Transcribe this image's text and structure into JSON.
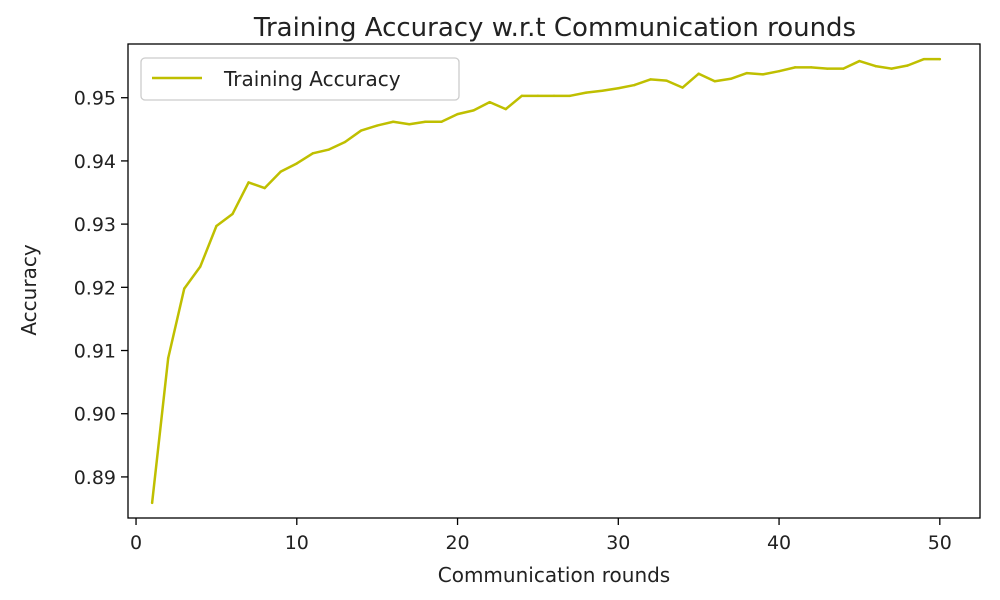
{
  "chart_data": {
    "type": "line",
    "title": "Training Accuracy w.r.t Communication rounds",
    "xlabel": "Communication rounds",
    "ylabel": "Accuracy",
    "xlim": [
      -0.5,
      52.5
    ],
    "ylim": [
      0.8835,
      0.9585
    ],
    "xticks": [
      0,
      10,
      20,
      30,
      40,
      50
    ],
    "xtick_labels": [
      "0",
      "10",
      "20",
      "30",
      "40",
      "50"
    ],
    "yticks": [
      0.89,
      0.9,
      0.91,
      0.92,
      0.93,
      0.94,
      0.95
    ],
    "ytick_labels": [
      "0.89",
      "0.90",
      "0.91",
      "0.92",
      "0.93",
      "0.94",
      "0.95"
    ],
    "grid": false,
    "legend_position": "upper left",
    "series": [
      {
        "name": "Training Accuracy",
        "color": "#bfbf00",
        "x": [
          1,
          2,
          3,
          4,
          5,
          6,
          7,
          8,
          9,
          10,
          11,
          12,
          13,
          14,
          15,
          16,
          17,
          18,
          19,
          20,
          21,
          22,
          23,
          24,
          25,
          26,
          27,
          28,
          29,
          30,
          31,
          32,
          33,
          34,
          35,
          36,
          37,
          38,
          39,
          40,
          41,
          42,
          43,
          44,
          45,
          46,
          47,
          48,
          49,
          50
        ],
        "y": [
          0.8859,
          0.9088,
          0.9198,
          0.9233,
          0.9297,
          0.9316,
          0.9366,
          0.9357,
          0.9383,
          0.9396,
          0.9412,
          0.9418,
          0.943,
          0.9448,
          0.9456,
          0.9462,
          0.9458,
          0.9462,
          0.9462,
          0.9474,
          0.948,
          0.9493,
          0.9482,
          0.9503,
          0.9503,
          0.9503,
          0.9503,
          0.9508,
          0.9511,
          0.9515,
          0.952,
          0.9529,
          0.9527,
          0.9516,
          0.9538,
          0.9526,
          0.953,
          0.9539,
          0.9537,
          0.9542,
          0.9548,
          0.9548,
          0.9546,
          0.9546,
          0.9558,
          0.955,
          0.9546,
          0.9551,
          0.9561,
          0.9561
        ]
      }
    ]
  }
}
